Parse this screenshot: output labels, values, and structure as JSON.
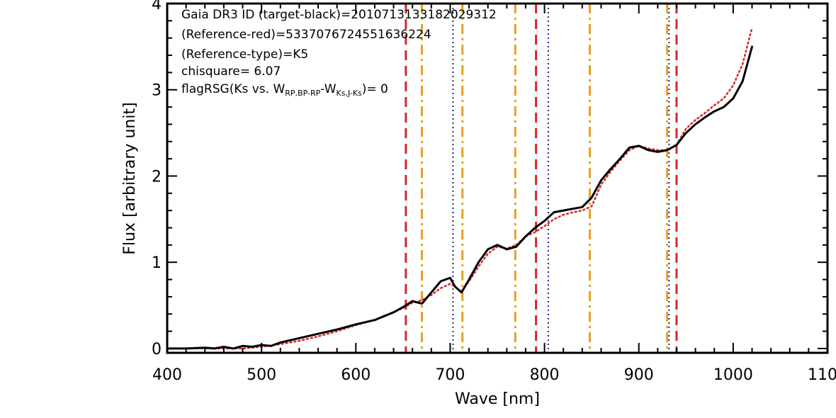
{
  "chart_data": {
    "type": "line",
    "xlabel": "Wave [nm]",
    "ylabel": "Flux [arbitrary unit]",
    "xlim": [
      400,
      1100
    ],
    "ylim": [
      -0.05,
      4.0
    ],
    "x_ticks": [
      400,
      500,
      600,
      700,
      800,
      900,
      1000,
      1100
    ],
    "x_tick_labels": [
      "400",
      "500",
      "600",
      "700",
      "800",
      "900",
      "1000",
      "1100"
    ],
    "y_ticks": [
      0,
      1,
      2,
      3,
      4
    ],
    "y_tick_labels": [
      "0",
      "1",
      "2",
      "3",
      "4"
    ],
    "annotations": {
      "line1": "Gaia DR3 ID (target-black)=2010713133182029312",
      "line2": "(Reference-red)=5337076724551636224",
      "line3": "(Reference-type)=K5",
      "line4": "chisquare= 6.07",
      "line5_prefix": "flagRSG(Ks vs. W",
      "line5_sub1": "RP,BP-RP",
      "line5_mid": "-W",
      "line5_sub2": "Ks,J-Ks",
      "line5_suffix": ")= 0"
    },
    "series": [
      {
        "color": "#000000",
        "style": "solid",
        "x": [
          400,
          420,
          440,
          450,
          460,
          470,
          480,
          490,
          500,
          510,
          520,
          540,
          560,
          580,
          600,
          620,
          640,
          650,
          660,
          670,
          680,
          690,
          700,
          705,
          712,
          720,
          730,
          740,
          750,
          760,
          770,
          780,
          790,
          800,
          810,
          820,
          830,
          840,
          850,
          860,
          870,
          880,
          890,
          900,
          910,
          920,
          930,
          940,
          950,
          960,
          970,
          980,
          990,
          1000,
          1010,
          1020
        ],
        "y": [
          0.0,
          0.0,
          0.01,
          0.0,
          0.02,
          0.0,
          0.03,
          0.02,
          0.04,
          0.03,
          0.07,
          0.12,
          0.17,
          0.22,
          0.28,
          0.33,
          0.42,
          0.48,
          0.55,
          0.52,
          0.65,
          0.78,
          0.82,
          0.72,
          0.65,
          0.8,
          1.0,
          1.15,
          1.2,
          1.15,
          1.18,
          1.3,
          1.4,
          1.48,
          1.58,
          1.6,
          1.62,
          1.64,
          1.75,
          1.95,
          2.08,
          2.2,
          2.33,
          2.35,
          2.3,
          2.28,
          2.3,
          2.36,
          2.5,
          2.6,
          2.68,
          2.75,
          2.8,
          2.9,
          3.1,
          3.5
        ]
      },
      {
        "color": "#d62728",
        "style": "dotted",
        "x": [
          400,
          420,
          440,
          460,
          480,
          500,
          520,
          540,
          560,
          580,
          600,
          620,
          640,
          650,
          660,
          670,
          680,
          690,
          700,
          705,
          712,
          720,
          730,
          740,
          750,
          760,
          770,
          780,
          790,
          800,
          810,
          820,
          830,
          840,
          850,
          860,
          870,
          880,
          890,
          900,
          910,
          920,
          930,
          940,
          950,
          960,
          970,
          980,
          990,
          1000,
          1010,
          1020
        ],
        "y": [
          0.0,
          0.0,
          0.0,
          0.0,
          0.0,
          0.02,
          0.05,
          0.09,
          0.14,
          0.2,
          0.27,
          0.33,
          0.42,
          0.47,
          0.53,
          0.56,
          0.62,
          0.7,
          0.75,
          0.72,
          0.66,
          0.78,
          0.95,
          1.1,
          1.18,
          1.16,
          1.2,
          1.3,
          1.35,
          1.42,
          1.5,
          1.55,
          1.58,
          1.6,
          1.65,
          1.9,
          2.05,
          2.18,
          2.3,
          2.35,
          2.32,
          2.3,
          2.3,
          2.36,
          2.55,
          2.65,
          2.73,
          2.82,
          2.9,
          3.05,
          3.3,
          3.72
        ]
      }
    ],
    "vertical_lines": [
      {
        "x": 653,
        "color": "#d62728",
        "style": "dashed"
      },
      {
        "x": 670,
        "color": "#e8a020",
        "style": "dashdot"
      },
      {
        "x": 703,
        "color": "#1f2a7a",
        "style": "dotted"
      },
      {
        "x": 713,
        "color": "#e8a020",
        "style": "dashdot"
      },
      {
        "x": 769,
        "color": "#e8a020",
        "style": "dashdot"
      },
      {
        "x": 791,
        "color": "#d62728",
        "style": "dashed"
      },
      {
        "x": 804,
        "color": "#1f2a7a",
        "style": "dotted"
      },
      {
        "x": 848,
        "color": "#e8a020",
        "style": "dashdot"
      },
      {
        "x": 930,
        "color": "#e8a020",
        "style": "dashdot"
      },
      {
        "x": 932,
        "color": "#1f2a7a",
        "style": "dotted"
      },
      {
        "x": 940,
        "color": "#d62728",
        "style": "dashed"
      }
    ],
    "grid": false,
    "legend": "none"
  }
}
